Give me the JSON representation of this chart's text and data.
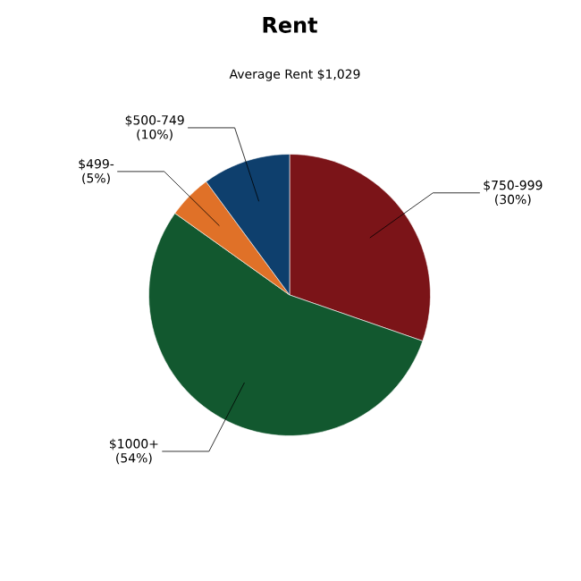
{
  "chart_data": {
    "type": "pie",
    "title": "Rent",
    "subtitle": "Average Rent  $1,029",
    "categories": [
      "$750-999",
      "$1000+",
      "$499-",
      "$500-749"
    ],
    "values": [
      30,
      54,
      5,
      10
    ],
    "value_labels": [
      "(30%)",
      "(54%)",
      "(5%)",
      "(10%)"
    ],
    "colors": [
      "#7b1418",
      "#12582f",
      "#e07128",
      "#0e3f6d"
    ]
  }
}
